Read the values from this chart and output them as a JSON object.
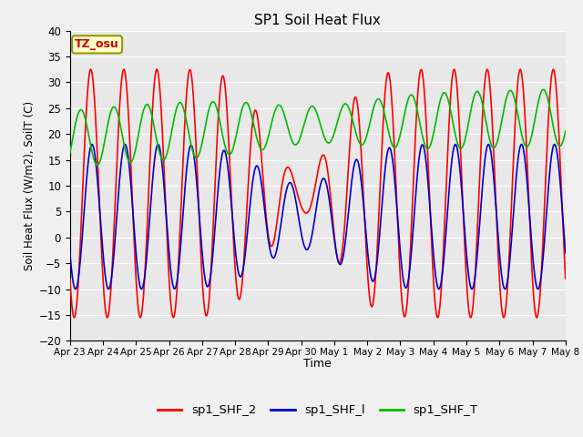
{
  "title": "SP1 Soil Heat Flux",
  "xlabel": "Time",
  "ylabel": "Soil Heat Flux (W/m2), SoilT (C)",
  "ylim": [
    -20,
    40
  ],
  "yticks": [
    -20,
    -15,
    -10,
    -5,
    0,
    5,
    10,
    15,
    20,
    25,
    30,
    35,
    40
  ],
  "colors": {
    "sp1_SHF_2": "#ff0000",
    "sp1_SHF_1": "#0000cc",
    "sp1_SHF_T": "#00bb00"
  },
  "legend_labels": [
    "sp1_SHF_2",
    "sp1_SHF_l",
    "sp1_SHF_T"
  ],
  "tz_label": "TZ_osu",
  "plot_bg": "#e8e8e8",
  "fig_bg": "#f0f0f0",
  "grid_color": "#ffffff",
  "tick_labels": [
    "Apr 23",
    "Apr 24",
    "Apr 25",
    "Apr 26",
    "Apr 27",
    "Apr 28",
    "Apr 29",
    "Apr 30",
    "May 1",
    "May 2",
    "May 3",
    "May 4",
    "May 5",
    "May 6",
    "May 7",
    "May 8"
  ],
  "num_days": 15
}
